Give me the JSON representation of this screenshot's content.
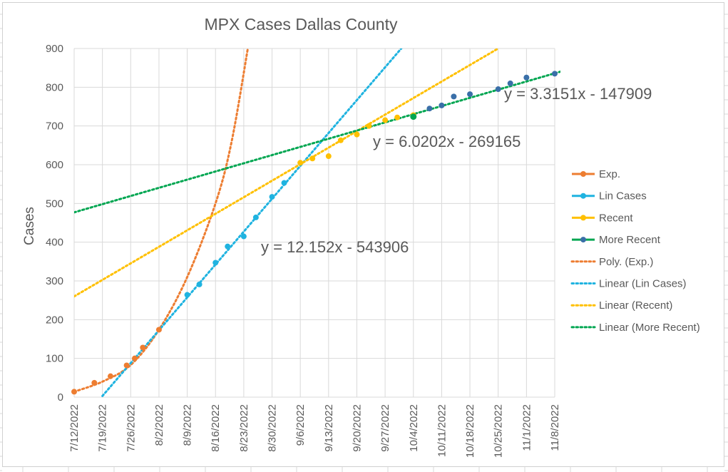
{
  "chart_data": {
    "type": "scatter",
    "title": "MPX Cases Dallas County",
    "xlabel": "",
    "ylabel": "Cases",
    "ylim": [
      0,
      900
    ],
    "yticks": [
      0,
      100,
      200,
      300,
      400,
      500,
      600,
      700,
      800,
      900
    ],
    "xlim": [
      "7/12/2022",
      "11/8/2022"
    ],
    "xtick_labels": [
      "7/12/2022",
      "7/19/2022",
      "7/26/2022",
      "8/2/2022",
      "8/9/2022",
      "8/16/2022",
      "8/23/2022",
      "8/30/2022",
      "9/6/2022",
      "9/13/2022",
      "9/20/2022",
      "9/27/2022",
      "10/4/2022",
      "10/11/2022",
      "10/18/2022",
      "10/25/2022",
      "11/1/2022",
      "11/8/2022"
    ],
    "grid": true,
    "legend_position": "right",
    "series": [
      {
        "name": "Exp.",
        "color": "#ED7D31",
        "points": [
          {
            "x": "7/12/2022",
            "y": 14
          },
          {
            "x": "7/17/2022",
            "y": 37
          },
          {
            "x": "7/21/2022",
            "y": 54
          },
          {
            "x": "7/25/2022",
            "y": 82
          },
          {
            "x": "7/27/2022",
            "y": 100
          },
          {
            "x": "7/29/2022",
            "y": 128
          },
          {
            "x": "8/2/2022",
            "y": 174
          }
        ]
      },
      {
        "name": "Lin Cases",
        "color": "#1FB3E0",
        "points": [
          {
            "x": "8/9/2022",
            "y": 264
          },
          {
            "x": "8/12/2022",
            "y": 291
          },
          {
            "x": "8/16/2022",
            "y": 347
          },
          {
            "x": "8/19/2022",
            "y": 389
          },
          {
            "x": "8/23/2022",
            "y": 415
          },
          {
            "x": "8/26/2022",
            "y": 464
          },
          {
            "x": "8/30/2022",
            "y": 517
          },
          {
            "x": "9/2/2022",
            "y": 553
          }
        ]
      },
      {
        "name": "Recent",
        "color": "#FFC000",
        "points": [
          {
            "x": "9/6/2022",
            "y": 605
          },
          {
            "x": "9/9/2022",
            "y": 616
          },
          {
            "x": "9/13/2022",
            "y": 622
          },
          {
            "x": "9/16/2022",
            "y": 663
          },
          {
            "x": "9/20/2022",
            "y": 678
          },
          {
            "x": "9/23/2022",
            "y": 700
          },
          {
            "x": "9/27/2022",
            "y": 715
          },
          {
            "x": "9/30/2022",
            "y": 722
          },
          {
            "x": "10/4/2022",
            "y": 728
          }
        ]
      },
      {
        "name": "More Recent",
        "color": "#3A6FA8",
        "points": [
          {
            "x": "10/4/2022",
            "y": 724
          },
          {
            "x": "10/8/2022",
            "y": 745
          },
          {
            "x": "10/11/2022",
            "y": 753
          },
          {
            "x": "10/14/2022",
            "y": 776
          },
          {
            "x": "10/18/2022",
            "y": 782
          },
          {
            "x": "10/25/2022",
            "y": 795
          },
          {
            "x": "10/28/2022",
            "y": 810
          },
          {
            "x": "11/1/2022",
            "y": 825
          },
          {
            "x": "11/8/2022",
            "y": 835
          }
        ]
      }
    ],
    "trendlines": [
      {
        "name": "Poly. (Exp.)",
        "color": "#ED7D31",
        "type": "polynomial",
        "points": [
          {
            "x": "7/12/2022",
            "y": 14
          },
          {
            "x": "7/19/2022",
            "y": 40
          },
          {
            "x": "7/26/2022",
            "y": 83
          },
          {
            "x": "8/2/2022",
            "y": 174
          },
          {
            "x": "8/9/2022",
            "y": 310
          },
          {
            "x": "8/16/2022",
            "y": 500
          },
          {
            "x": "8/20/2022",
            "y": 660
          },
          {
            "x": "8/24/2022",
            "y": 900
          }
        ]
      },
      {
        "name": "Linear (Lin Cases)",
        "color": "#1FB3E0",
        "type": "linear",
        "start": {
          "x": "7/19/2022",
          "y": 3
        },
        "end": {
          "x": "10/1/2022",
          "y": 900
        },
        "equation": "y = 12.152x - 543906"
      },
      {
        "name": "Linear (Recent)",
        "color": "#FFC000",
        "type": "linear",
        "start": {
          "x": "7/12/2022",
          "y": 260
        },
        "end": {
          "x": "10/25/2022",
          "y": 900
        },
        "equation": "y = 6.0202x - 269165"
      },
      {
        "name": "Linear (More Recent)",
        "color": "#00A651",
        "type": "linear",
        "start": {
          "x": "7/12/2022",
          "y": 477
        },
        "end": {
          "x": "11/12/2022",
          "y": 848
        },
        "equation": "y = 3.3151x - 147909"
      }
    ],
    "legend": [
      {
        "label": "Exp.",
        "color": "#ED7D31",
        "style": "line-marker"
      },
      {
        "label": "Lin Cases",
        "color": "#1FB3E0",
        "style": "line-marker"
      },
      {
        "label": "Recent",
        "color": "#FFC000",
        "style": "line-marker"
      },
      {
        "label": "More Recent",
        "color": "#00A651",
        "marker_color": "#3A6FA8",
        "style": "line-marker"
      },
      {
        "label": "Poly. (Exp.)",
        "color": "#ED7D31",
        "style": "dotted"
      },
      {
        "label": "Linear (Lin Cases)",
        "color": "#1FB3E0",
        "style": "dotted"
      },
      {
        "label": "Linear (Recent)",
        "color": "#FFC000",
        "style": "dotted"
      },
      {
        "label": "Linear (More Recent)",
        "color": "#00A651",
        "style": "dotted"
      }
    ]
  }
}
